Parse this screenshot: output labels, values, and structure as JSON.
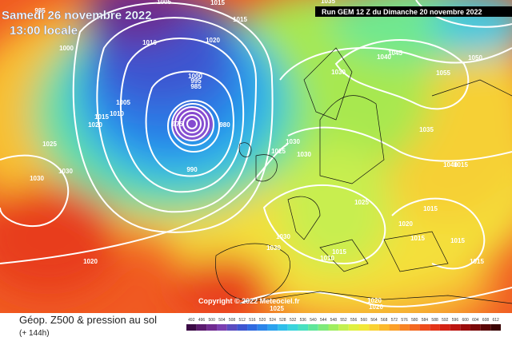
{
  "header": {
    "valid_date": "Samedi 26 novembre 2022",
    "valid_time": "13:00 locale",
    "run": "Run GEM 12 Z du Dimanche 20 novembre 2022"
  },
  "footer": {
    "title": "Géop. Z500 & pression au sol",
    "lead_time": "(+ 144h)",
    "copyright": "Copyright © 2022 Meteociel.fr"
  },
  "legend": {
    "values": [
      492,
      496,
      500,
      504,
      508,
      512,
      516,
      520,
      524,
      528,
      532,
      536,
      540,
      544,
      548,
      552,
      556,
      560,
      564,
      568,
      572,
      576,
      580,
      584,
      588,
      592,
      596,
      600,
      604,
      608,
      612
    ],
    "colors": [
      "#3b0a45",
      "#5a1a6e",
      "#6f2a90",
      "#7a3fb0",
      "#5a4cc0",
      "#3d55d0",
      "#2f6ae0",
      "#2a85ea",
      "#2aa2ee",
      "#2fbeea",
      "#3ad4dc",
      "#48e0c0",
      "#5fe69a",
      "#7fea7a",
      "#a0ee60",
      "#c3f050",
      "#e0f040",
      "#f2e838",
      "#fad232",
      "#fcba2c",
      "#fca028",
      "#f88424",
      "#f46820",
      "#ee4c1c",
      "#e43418",
      "#d42214",
      "#bc1410",
      "#9a0c0c",
      "#7a0808",
      "#5a0606",
      "#3a0404"
    ]
  },
  "isobars": [
    "985",
    "1005",
    "1015",
    "1035",
    "1000",
    "1010",
    "1020",
    "1015",
    "1005",
    "1010",
    "1015",
    "1020",
    "1025",
    "1030",
    "1030",
    "990",
    "1000",
    "995",
    "985",
    "980",
    "975",
    "1030",
    "1040",
    "1045",
    "1050",
    "1055",
    "1035",
    "1030",
    "1025",
    "1030",
    "1040",
    "1015",
    "1025",
    "1020",
    "1015",
    "1015",
    "1015",
    "1015",
    "1030",
    "1030",
    "1015",
    "1010",
    "1020",
    "1020",
    "1020",
    "1025"
  ]
}
